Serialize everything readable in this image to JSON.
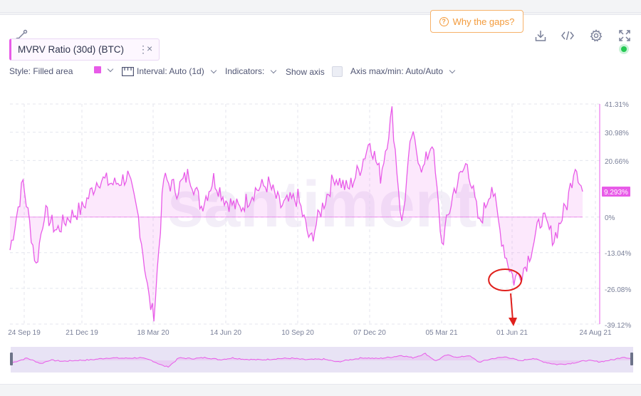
{
  "toolbar": {
    "gaps_label": "Why the gaps?",
    "gaps_icon": "question-circle-icon",
    "icons": [
      "line-draw-icon",
      "download-icon",
      "embed-code-icon",
      "gear-icon",
      "fullscreen-icon"
    ]
  },
  "metric": {
    "label": "MVRV Ratio (30d) (BTC)",
    "menu": "⋮",
    "close": "×",
    "color": "#e85be8"
  },
  "settings": {
    "style": "Style: Filled area",
    "interval": "Interval: Auto (1d)",
    "indicators": "Indicators:",
    "show_axis": "Show axis",
    "axis_minmax": "Axis max/min: Auto/Auto"
  },
  "status": {
    "color": "#26c953"
  },
  "watermark": "santiment.",
  "chart_data": {
    "type": "area",
    "series_color": "#e85be8",
    "ylim": [
      -39.12,
      41.31
    ],
    "y_ticks": [
      "41.31%",
      "30.98%",
      "20.66%",
      "9.293%",
      "0%",
      "-13.04%",
      "-26.08%",
      "-39.12%"
    ],
    "y_tick_values": [
      41.31,
      30.98,
      20.66,
      0,
      -13.04,
      -26.08,
      -39.12
    ],
    "current_value_label": "9.293%",
    "current_value": 9.293,
    "x_ticks": [
      "24 Sep 19",
      "21 Dec 19",
      "18 Mar 20",
      "14 Jun 20",
      "10 Sep 20",
      "07 Dec 20",
      "05 Mar 21",
      "01 Jun 21",
      "24 Aug 21"
    ],
    "x": [
      "2019-09-24",
      "2019-10-10",
      "2019-10-26",
      "2019-11-05",
      "2019-11-20",
      "2019-12-05",
      "2019-12-21",
      "2020-01-10",
      "2020-01-30",
      "2020-02-15",
      "2020-02-28",
      "2020-03-12",
      "2020-03-18",
      "2020-03-30",
      "2020-04-15",
      "2020-04-30",
      "2020-05-15",
      "2020-05-30",
      "2020-06-14",
      "2020-07-01",
      "2020-07-20",
      "2020-08-05",
      "2020-08-20",
      "2020-09-10",
      "2020-09-25",
      "2020-10-10",
      "2020-10-25",
      "2020-11-10",
      "2020-11-25",
      "2020-12-07",
      "2020-12-20",
      "2021-01-03",
      "2021-01-15",
      "2021-01-27",
      "2021-02-10",
      "2021-02-21",
      "2021-03-05",
      "2021-03-20",
      "2021-04-05",
      "2021-04-20",
      "2021-05-05",
      "2021-05-15",
      "2021-05-23",
      "2021-06-01",
      "2021-06-15",
      "2021-06-22",
      "2021-07-05",
      "2021-07-20",
      "2021-08-05",
      "2021-08-15",
      "2021-08-24"
    ],
    "values": [
      -12,
      13,
      -18,
      2,
      -5,
      0,
      3,
      14,
      12,
      15,
      0,
      -30,
      -37,
      14,
      10,
      16,
      4,
      14,
      6,
      3,
      10,
      12,
      4,
      7,
      -9,
      4,
      15,
      10,
      18,
      28,
      15,
      38,
      -3,
      30,
      17,
      28,
      -10,
      10,
      20,
      -3,
      12,
      -5,
      -15,
      -23,
      -18,
      -12,
      0,
      -8,
      5,
      20,
      9.3
    ],
    "annotation": {
      "type": "circle-with-arrow",
      "at_x": "2021-05-23",
      "color": "#e0201c"
    },
    "navigator": true
  }
}
